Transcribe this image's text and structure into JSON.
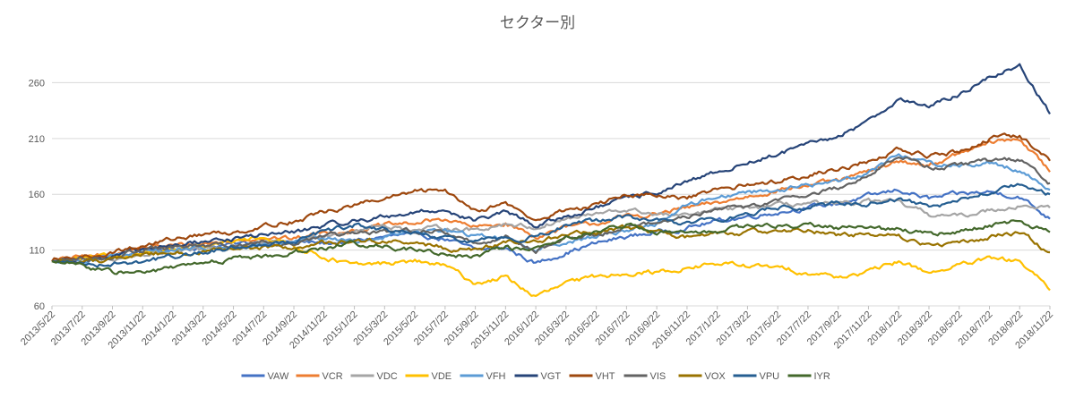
{
  "chart_data": {
    "type": "line",
    "title": "セクター別",
    "xlabel": "",
    "ylabel": "",
    "ylim": [
      60,
      290
    ],
    "yticks": [
      60,
      110,
      160,
      210,
      260
    ],
    "grid": true,
    "legend_position": "bottom",
    "categories": [
      "2013/5/22",
      "2013/7/22",
      "2013/9/22",
      "2013/11/22",
      "2014/1/22",
      "2014/3/22",
      "2014/5/22",
      "2014/7/22",
      "2014/9/22",
      "2014/11/22",
      "2015/1/22",
      "2015/3/22",
      "2015/5/22",
      "2015/7/22",
      "2015/9/22",
      "2015/11/22",
      "2016/1/22",
      "2016/3/22",
      "2016/5/22",
      "2016/7/22",
      "2016/9/22",
      "2016/11/22",
      "2017/1/22",
      "2017/3/22",
      "2017/5/22",
      "2017/7/22",
      "2017/9/22",
      "2017/11/22",
      "2018/1/22",
      "2018/3/22",
      "2018/5/22",
      "2018/7/22",
      "2018/9/22",
      "2018/11/22"
    ],
    "series": [
      {
        "name": "VAW",
        "color": "#4472C4",
        "values": [
          100,
          102,
          104,
          108,
          111,
          113,
          115,
          118,
          117,
          116,
          118,
          122,
          124,
          120,
          110,
          112,
          98,
          108,
          116,
          122,
          126,
          130,
          136,
          140,
          144,
          148,
          152,
          158,
          164,
          156,
          160,
          162,
          158,
          138
        ]
      },
      {
        "name": "VCR",
        "color": "#ED7D31",
        "values": [
          100,
          104,
          106,
          112,
          114,
          116,
          118,
          122,
          120,
          126,
          128,
          132,
          134,
          138,
          130,
          134,
          122,
          130,
          134,
          140,
          142,
          148,
          152,
          158,
          164,
          168,
          172,
          180,
          190,
          186,
          196,
          206,
          210,
          180
        ]
      },
      {
        "name": "VDC",
        "color": "#A5A5A5",
        "values": [
          100,
          102,
          102,
          106,
          108,
          110,
          114,
          116,
          116,
          124,
          128,
          132,
          128,
          130,
          128,
          134,
          130,
          138,
          142,
          146,
          142,
          140,
          146,
          148,
          150,
          152,
          150,
          154,
          152,
          142,
          140,
          146,
          150,
          148
        ]
      },
      {
        "name": "VDE",
        "color": "#FFC000",
        "values": [
          100,
          102,
          104,
          108,
          110,
          112,
          118,
          122,
          114,
          104,
          96,
          98,
          100,
          96,
          80,
          86,
          68,
          80,
          86,
          90,
          90,
          94,
          98,
          96,
          94,
          90,
          86,
          90,
          100,
          90,
          96,
          102,
          100,
          74
        ]
      },
      {
        "name": "VFH",
        "color": "#5B9BD5",
        "values": [
          100,
          101,
          104,
          108,
          110,
          111,
          112,
          114,
          116,
          120,
          118,
          122,
          126,
          128,
          122,
          122,
          110,
          118,
          122,
          128,
          134,
          150,
          158,
          162,
          164,
          168,
          172,
          180,
          196,
          188,
          186,
          188,
          182,
          164
        ]
      },
      {
        "name": "VGT",
        "color": "#264478",
        "values": [
          100,
          102,
          104,
          110,
          114,
          118,
          120,
          124,
          126,
          132,
          136,
          140,
          144,
          146,
          136,
          144,
          132,
          140,
          148,
          156,
          162,
          170,
          180,
          188,
          196,
          204,
          212,
          226,
          246,
          238,
          250,
          264,
          276,
          232
        ]
      },
      {
        "name": "VHT",
        "color": "#9E480E",
        "values": [
          100,
          104,
          108,
          114,
          120,
          124,
          126,
          132,
          136,
          144,
          150,
          156,
          162,
          164,
          146,
          152,
          136,
          146,
          150,
          160,
          158,
          156,
          164,
          168,
          172,
          178,
          182,
          190,
          200,
          194,
          198,
          210,
          212,
          190
        ]
      },
      {
        "name": "VIS",
        "color": "#636363",
        "values": [
          100,
          102,
          104,
          110,
          112,
          114,
          114,
          118,
          116,
          122,
          124,
          126,
          128,
          126,
          116,
          122,
          110,
          120,
          124,
          132,
          134,
          140,
          146,
          150,
          154,
          160,
          166,
          176,
          196,
          184,
          186,
          190,
          192,
          170
        ]
      },
      {
        "name": "VOX",
        "color": "#997300",
        "values": [
          100,
          100,
          102,
          106,
          108,
          108,
          110,
          112,
          112,
          116,
          118,
          118,
          116,
          112,
          110,
          116,
          118,
          124,
          126,
          130,
          126,
          122,
          124,
          126,
          128,
          128,
          124,
          124,
          122,
          114,
          116,
          122,
          126,
          108
        ]
      },
      {
        "name": "VPU",
        "color": "#255E91",
        "values": [
          100,
          98,
          98,
          100,
          104,
          108,
          112,
          116,
          118,
          126,
          132,
          128,
          124,
          120,
          118,
          120,
          122,
          132,
          136,
          140,
          136,
          134,
          138,
          142,
          148,
          150,
          152,
          152,
          156,
          148,
          154,
          162,
          168,
          160
        ]
      },
      {
        "name": "IYR",
        "color": "#43682B",
        "values": [
          100,
          96,
          90,
          90,
          94,
          98,
          102,
          104,
          108,
          112,
          116,
          114,
          110,
          106,
          104,
          112,
          110,
          122,
          126,
          132,
          126,
          124,
          128,
          130,
          132,
          132,
          130,
          130,
          128,
          124,
          126,
          132,
          136,
          126
        ]
      }
    ]
  }
}
